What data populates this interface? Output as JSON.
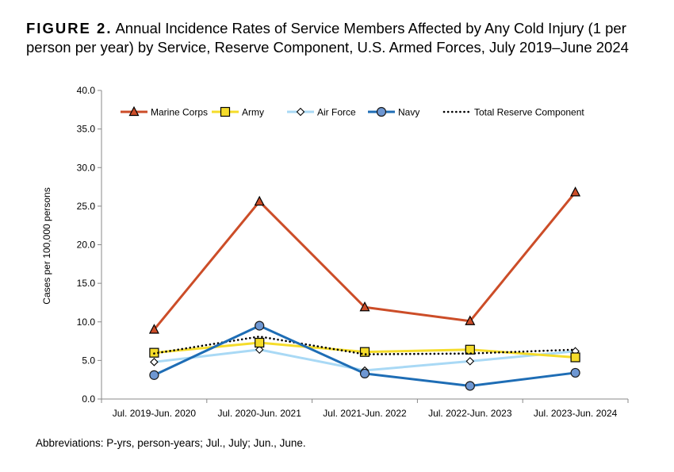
{
  "title": {
    "figure_label": "FIGURE 2.",
    "text": "Annual Incidence Rates of Service Members Affected by Any Cold Injury (1 per person per year) by Service, Reserve Component, U.S. Armed Forces, July 2019–June 2024"
  },
  "footnote": "Abbreviations: P-yrs, person-years; Jul., July; Jun., June.",
  "chart_data": {
    "type": "line",
    "categories": [
      "Jul. 2019-Jun. 2020",
      "Jul. 2020-Jun. 2021",
      "Jul. 2021-Jun. 2022",
      "Jul. 2022-Jun. 2023",
      "Jul. 2023-Jun. 2024"
    ],
    "ylabel": "Cases per 100,000 persons",
    "ylim": [
      0,
      40
    ],
    "yticks": [
      "0.0",
      "5.0",
      "10.0",
      "15.0",
      "20.0",
      "25.0",
      "30.0",
      "35.0",
      "40.0"
    ],
    "grid": false,
    "legend_position": "top",
    "series": [
      {
        "name": "Marine Corps",
        "color": "#CC4D28",
        "marker": "triangle",
        "values": [
          9.0,
          25.6,
          11.9,
          10.1,
          26.8
        ]
      },
      {
        "name": "Army",
        "color": "#F5DC2A",
        "marker": "square",
        "values": [
          6.0,
          7.3,
          6.1,
          6.4,
          5.4
        ]
      },
      {
        "name": "Air Force",
        "color": "#A9D9F5",
        "marker": "diamond",
        "values": [
          4.8,
          6.4,
          3.7,
          4.9,
          6.2
        ]
      },
      {
        "name": "Navy",
        "color": "#1E6DB5",
        "marker": "circle",
        "values": [
          3.1,
          9.5,
          3.3,
          1.7,
          3.4
        ]
      },
      {
        "name": "Total Reserve Component",
        "color": "#000000",
        "marker": "dotted",
        "values": [
          5.9,
          8.1,
          5.8,
          5.9,
          6.4
        ]
      }
    ]
  }
}
